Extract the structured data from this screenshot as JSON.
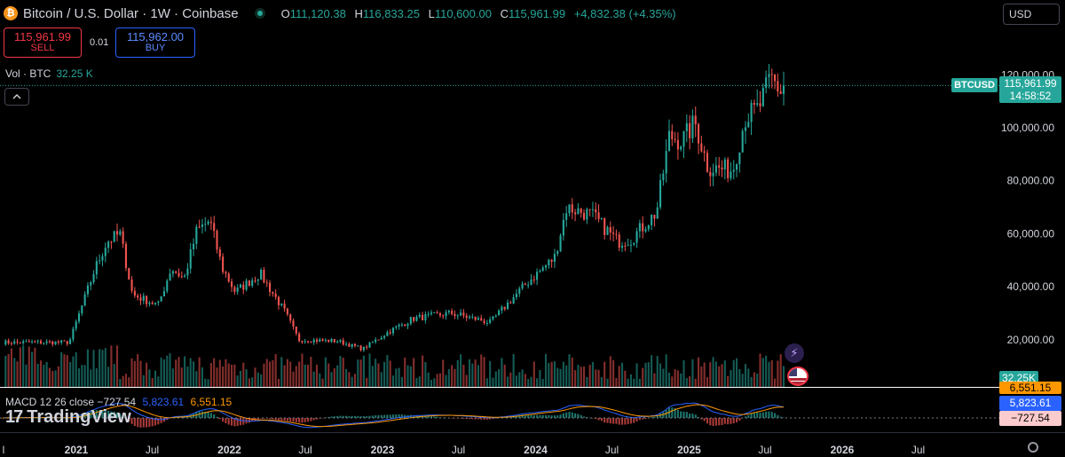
{
  "header": {
    "symbol_title": "Bitcoin / U.S. Dollar · 1W · Coinbase",
    "btc_icon_glyph": "₿",
    "ohlc": [
      {
        "key": "O",
        "value": "111,120.38"
      },
      {
        "key": "H",
        "value": "116,833.25"
      },
      {
        "key": "L",
        "value": "110,600.00"
      },
      {
        "key": "C",
        "value": "115,961.99"
      }
    ],
    "change": "+4,832.38 (+4.35%)"
  },
  "trade": {
    "sell_price": "115,961.99",
    "sell_label": "SELL",
    "spread": "0.01",
    "buy_price": "115,962.00",
    "buy_label": "BUY"
  },
  "volume_legend": {
    "label": "Vol · BTC",
    "value": "32.25 K"
  },
  "currency": "USD",
  "price_tag": {
    "symbol": "BTCUSD",
    "price": "115,961.99",
    "countdown": "14:58:52"
  },
  "volume_tag": "32.25K",
  "macd": {
    "label": "MACD 12 26 close",
    "histogram": "−727.54",
    "macd_value": "5,823.61",
    "signal_value": "6,551.15",
    "signal_tag": "6,551.15",
    "macd_tag": "5,823.61",
    "hist_tag": "−727.54"
  },
  "logo_text": "TradingView",
  "logo_mark": "17",
  "colors": {
    "up": "#26a69a",
    "down": "#ef5350",
    "macd": "#2962ff",
    "signal": "#ff9800"
  },
  "chart_data": {
    "type": "candlestick",
    "interval": "1W",
    "price_axis": {
      "ticks": [
        "20,000.00",
        "40,000.00",
        "60,000.00",
        "80,000.00",
        "100,000.00",
        "120,000.00"
      ],
      "min": 0,
      "max": 125000
    },
    "time_axis": {
      "ticks": [
        "l",
        "2021",
        "Jul",
        "2022",
        "Jul",
        "2023",
        "Jul",
        "2024",
        "Jul",
        "2025",
        "Jul",
        "2026",
        "Jul"
      ]
    },
    "key_prices": [
      {
        "date": "2020-12",
        "price": 19000
      },
      {
        "date": "2021-01",
        "price": 33000
      },
      {
        "date": "2021-02",
        "price": 47000
      },
      {
        "date": "2021-03",
        "price": 57000
      },
      {
        "date": "2021-04",
        "price": 60000
      },
      {
        "date": "2021-05",
        "price": 37000
      },
      {
        "date": "2021-07",
        "price": 33000
      },
      {
        "date": "2021-08",
        "price": 47000
      },
      {
        "date": "2021-09",
        "price": 43000
      },
      {
        "date": "2021-10",
        "price": 61000
      },
      {
        "date": "2021-11",
        "price": 65000
      },
      {
        "date": "2021-12",
        "price": 47000
      },
      {
        "date": "2022-01",
        "price": 38000
      },
      {
        "date": "2022-03",
        "price": 45000
      },
      {
        "date": "2022-05",
        "price": 30000
      },
      {
        "date": "2022-06",
        "price": 20000
      },
      {
        "date": "2022-09",
        "price": 19500
      },
      {
        "date": "2022-11",
        "price": 16500
      },
      {
        "date": "2023-01",
        "price": 23000
      },
      {
        "date": "2023-03",
        "price": 28000
      },
      {
        "date": "2023-06",
        "price": 30000
      },
      {
        "date": "2023-09",
        "price": 26500
      },
      {
        "date": "2023-11",
        "price": 37000
      },
      {
        "date": "2023-12",
        "price": 42000
      },
      {
        "date": "2024-02",
        "price": 51000
      },
      {
        "date": "2024-03",
        "price": 70000
      },
      {
        "date": "2024-05",
        "price": 67000
      },
      {
        "date": "2024-07",
        "price": 57000
      },
      {
        "date": "2024-08",
        "price": 58000
      },
      {
        "date": "2024-10",
        "price": 68000
      },
      {
        "date": "2024-11",
        "price": 97000
      },
      {
        "date": "2024-12",
        "price": 95000
      },
      {
        "date": "2025-01",
        "price": 102000
      },
      {
        "date": "2025-02",
        "price": 85000
      },
      {
        "date": "2025-04",
        "price": 84000
      },
      {
        "date": "2025-05",
        "price": 104000
      },
      {
        "date": "2025-06",
        "price": 107000
      },
      {
        "date": "2025-07",
        "price": 119000
      },
      {
        "date": "2025-08",
        "price": 112000
      },
      {
        "date": "2025-08-18",
        "price": 115961.99
      }
    ]
  }
}
